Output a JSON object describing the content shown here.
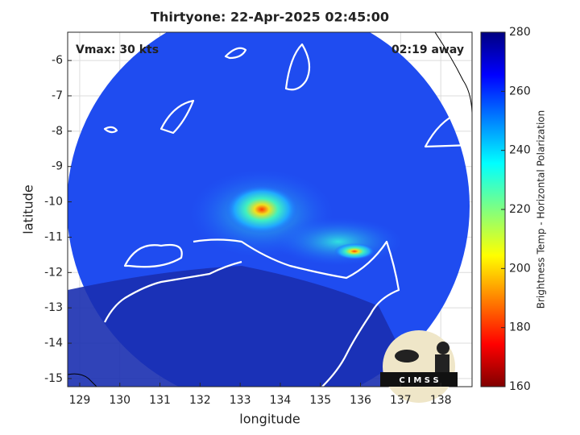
{
  "map": {
    "title": "Thirtyone: 22-Apr-2025 02:45:00",
    "annotation_left": "Vmax: 30 kts",
    "annotation_right": "02:19 away",
    "xlabel": "longitude",
    "ylabel": "latitude",
    "xlim": [
      128.7,
      138.78
    ],
    "ylim": [
      -15.23,
      -5.2
    ],
    "xticks": [
      129,
      130,
      131,
      132,
      133,
      134,
      135,
      136,
      137,
      138
    ],
    "yticks": [
      -15,
      -14,
      -13,
      -12,
      -11,
      -10,
      -9,
      -8,
      -7,
      -6
    ],
    "colorbar": {
      "label": "Brightness Temp - Horizontal Polarization",
      "lim": [
        160,
        280
      ],
      "ticks": [
        160,
        180,
        200,
        220,
        240,
        260,
        280
      ]
    },
    "logo": "C I M S S"
  }
}
